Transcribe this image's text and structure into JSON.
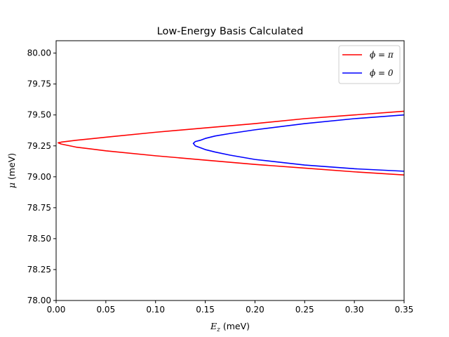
{
  "chart_data": {
    "type": "line",
    "title": "Low-Energy Basis Calculated",
    "xlabel": "$E_z$ (meV)",
    "xlabel_main": "E",
    "xlabel_sub": "z",
    "xlabel_rest": " (meV)",
    "ylabel": "$\\mu$ (meV)",
    "ylabel_main": "μ",
    "ylabel_rest": " (meV)",
    "xlim": [
      0.0,
      0.35
    ],
    "ylim": [
      78.0,
      80.1
    ],
    "xticks": [
      0.0,
      0.05,
      0.1,
      0.15,
      0.2,
      0.25,
      0.3,
      0.35
    ],
    "xtick_labels": [
      "0.00",
      "0.05",
      "0.10",
      "0.15",
      "0.20",
      "0.25",
      "0.30",
      "0.35"
    ],
    "yticks": [
      78.0,
      78.25,
      78.5,
      78.75,
      79.0,
      79.25,
      79.5,
      79.75,
      80.0
    ],
    "ytick_labels": [
      "78.00",
      "78.25",
      "78.50",
      "78.75",
      "79.00",
      "79.25",
      "79.50",
      "79.75",
      "80.00"
    ],
    "grid": false,
    "legend_position": "top-right",
    "series": [
      {
        "name": "ϕ = π",
        "color": "#ff0000",
        "x": [
          0.35,
          0.3,
          0.25,
          0.2,
          0.15,
          0.1,
          0.05,
          0.02,
          0.005,
          0.002,
          0.005,
          0.02,
          0.05,
          0.1,
          0.15,
          0.2,
          0.25,
          0.3,
          0.35
        ],
        "y": [
          79.53,
          79.5,
          79.47,
          79.43,
          79.395,
          79.36,
          79.32,
          79.295,
          79.28,
          79.275,
          79.265,
          79.24,
          79.21,
          79.17,
          79.135,
          79.1,
          79.07,
          79.04,
          79.015
        ]
      },
      {
        "name": "ϕ = 0",
        "color": "#0000ff",
        "x": [
          0.35,
          0.3,
          0.25,
          0.2,
          0.175,
          0.16,
          0.15,
          0.145,
          0.14,
          0.138,
          0.14,
          0.145,
          0.15,
          0.16,
          0.175,
          0.2,
          0.25,
          0.3,
          0.35
        ],
        "y": [
          79.5,
          79.47,
          79.43,
          79.38,
          79.35,
          79.33,
          79.31,
          79.295,
          79.285,
          79.27,
          79.25,
          79.235,
          79.22,
          79.2,
          79.175,
          79.14,
          79.095,
          79.065,
          79.045
        ]
      }
    ]
  }
}
